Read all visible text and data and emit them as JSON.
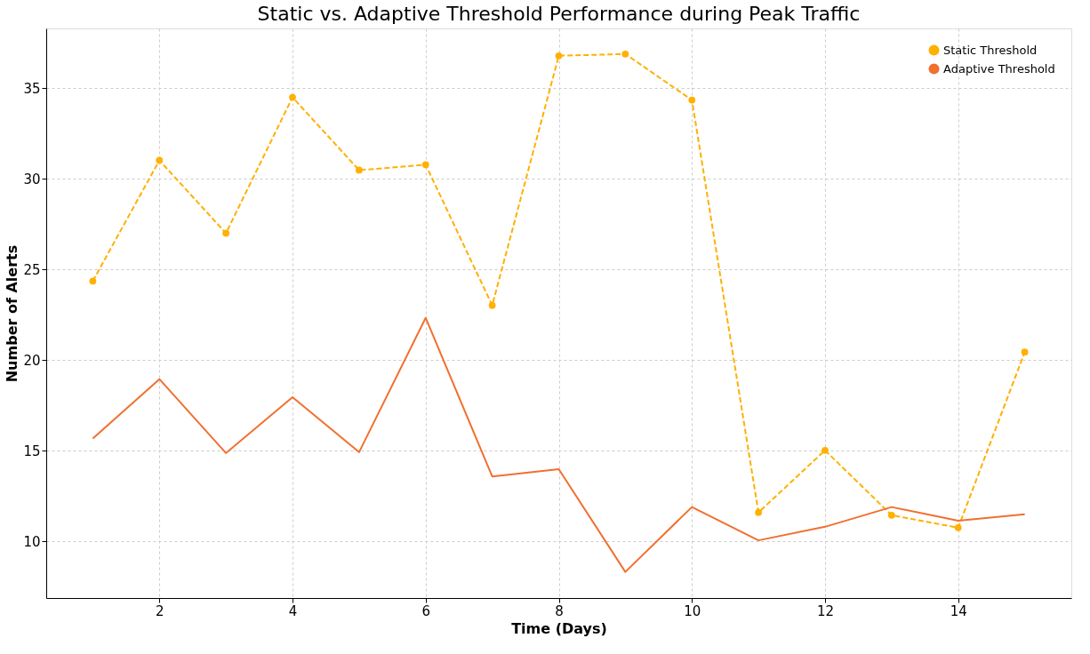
{
  "chart_data": {
    "type": "line",
    "title": "Static vs. Adaptive Threshold Performance during Peak Traffic",
    "xlabel": "Time (Days)",
    "ylabel": "Number of Alerts",
    "x": [
      1,
      2,
      3,
      4,
      5,
      6,
      7,
      8,
      9,
      10,
      11,
      12,
      13,
      14,
      15
    ],
    "series": [
      {
        "name": "Static Threshold",
        "color": "#ffb000",
        "marker": "circle",
        "line_style": "dashed",
        "values": [
          24.36,
          31.02,
          27.0,
          34.5,
          30.48,
          30.78,
          23.02,
          36.79,
          36.89,
          34.35,
          11.59,
          15.02,
          11.44,
          10.75,
          20.44
        ]
      },
      {
        "name": "Adaptive Threshold",
        "color": "#f07030",
        "marker": "none",
        "line_style": "solid",
        "values": [
          15.67,
          18.95,
          14.87,
          17.95,
          14.92,
          22.33,
          13.58,
          13.98,
          8.31,
          11.89,
          10.05,
          10.8,
          11.89,
          11.14,
          11.49
        ]
      }
    ],
    "xlim": [
      0.3,
      15.7
    ],
    "ylim": [
      6.87,
      38.3
    ],
    "xticks": [
      2,
      4,
      6,
      8,
      10,
      12,
      14
    ],
    "yticks": [
      10,
      15,
      20,
      25,
      30,
      35
    ],
    "grid": true,
    "legend": "top right"
  }
}
